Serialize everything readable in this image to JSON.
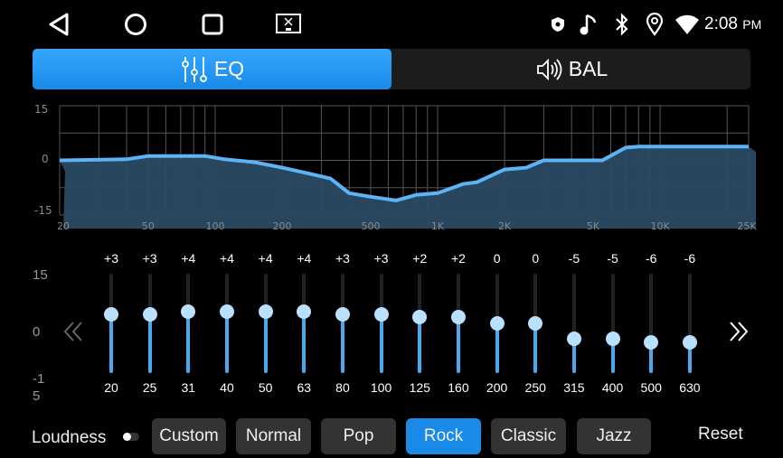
{
  "status_bar": {
    "time": "2:08",
    "ampm": "PM",
    "icons": [
      "shield-icon",
      "music-note-icon",
      "bluetooth-icon",
      "location-icon",
      "wifi-icon"
    ]
  },
  "nav_bar": {
    "icons": [
      "back-icon",
      "home-icon",
      "recents-icon",
      "screen-off-icon"
    ]
  },
  "tabs": [
    {
      "label": "EQ",
      "icon": "equalizer-icon",
      "active": true
    },
    {
      "label": "BAL",
      "icon": "speaker-icon",
      "active": false
    }
  ],
  "graph": {
    "y_ticks": [
      "15",
      "0",
      "-15"
    ],
    "y_range": [
      -15,
      15
    ],
    "x_ticks": [
      "20",
      "50",
      "100",
      "200",
      "500",
      "1K",
      "2K",
      "5K",
      "10K",
      "25K"
    ],
    "x_tick_values": [
      20,
      50,
      100,
      200,
      500,
      1000,
      2000,
      5000,
      10000,
      25000
    ],
    "x_range": [
      20,
      25000
    ],
    "curve": [
      [
        20,
        0
      ],
      [
        40,
        0.3
      ],
      [
        50,
        1.2
      ],
      [
        90,
        1.2
      ],
      [
        110,
        0.3
      ],
      [
        150,
        -0.5
      ],
      [
        200,
        -2
      ],
      [
        280,
        -4
      ],
      [
        330,
        -5
      ],
      [
        400,
        -9
      ],
      [
        500,
        -10
      ],
      [
        650,
        -11
      ],
      [
        800,
        -9.5
      ],
      [
        1000,
        -9
      ],
      [
        1300,
        -6.5
      ],
      [
        1500,
        -6
      ],
      [
        2000,
        -2.5
      ],
      [
        2500,
        -2
      ],
      [
        3000,
        0
      ],
      [
        5500,
        0
      ],
      [
        7000,
        3.5
      ],
      [
        8000,
        3.8
      ],
      [
        25000,
        3.8
      ]
    ],
    "colors": {
      "line": "#5ab4f5",
      "fill": "#2a4a63",
      "grid": "#555555"
    }
  },
  "sliders": {
    "scale": [
      "15",
      "0",
      "-1",
      "5"
    ],
    "range": [
      -15,
      15
    ],
    "bands": [
      {
        "freq": "20",
        "label": "+3",
        "value": 3
      },
      {
        "freq": "25",
        "label": "+3",
        "value": 3
      },
      {
        "freq": "31",
        "label": "+4",
        "value": 4
      },
      {
        "freq": "40",
        "label": "+4",
        "value": 4
      },
      {
        "freq": "50",
        "label": "+4",
        "value": 4
      },
      {
        "freq": "63",
        "label": "+4",
        "value": 4
      },
      {
        "freq": "80",
        "label": "+3",
        "value": 3
      },
      {
        "freq": "100",
        "label": "+3",
        "value": 3
      },
      {
        "freq": "125",
        "label": "+2",
        "value": 2
      },
      {
        "freq": "160",
        "label": "+2",
        "value": 2
      },
      {
        "freq": "200",
        "label": "0",
        "value": 0
      },
      {
        "freq": "250",
        "label": "0",
        "value": 0
      },
      {
        "freq": "315",
        "label": "-5",
        "value": -5
      },
      {
        "freq": "400",
        "label": "-5",
        "value": -5
      },
      {
        "freq": "500",
        "label": "-6",
        "value": -6
      },
      {
        "freq": "630",
        "label": "-6",
        "value": -6
      }
    ]
  },
  "bottom": {
    "loudness_label": "Loudness",
    "loudness_on": false,
    "presets": [
      "Custom",
      "Normal",
      "Pop",
      "Rock",
      "Classic",
      "Jazz"
    ],
    "active_preset": "Rock",
    "reset_label": "Reset"
  },
  "accent": "#1a8ae8"
}
